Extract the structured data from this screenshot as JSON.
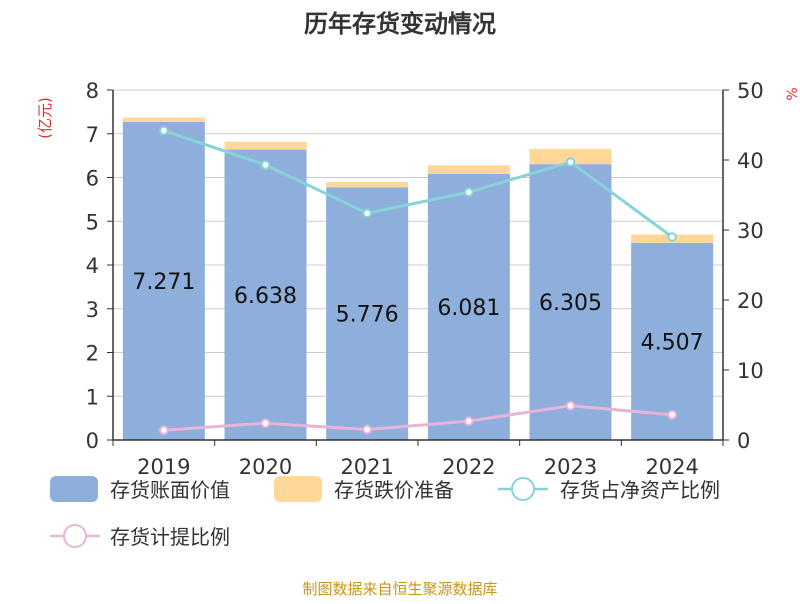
{
  "chart_data": {
    "type": "bar",
    "title": "历年存货变动情况",
    "categories": [
      "2019",
      "2020",
      "2021",
      "2022",
      "2023",
      "2024"
    ],
    "stacked": true,
    "y_left": {
      "unit_label": "(亿元)",
      "ylim": [
        0,
        8
      ],
      "ticks": [
        0,
        1,
        2,
        3,
        4,
        5,
        6,
        7,
        8
      ]
    },
    "y_right": {
      "unit_label": "%",
      "ylim": [
        0,
        50
      ],
      "ticks": [
        0,
        10,
        20,
        30,
        40,
        50
      ]
    },
    "series": [
      {
        "name": "存货账面价值",
        "kind": "bar",
        "axis": "left",
        "color": "#8eaedb",
        "values": [
          7.271,
          6.638,
          5.776,
          6.081,
          6.305,
          4.507
        ],
        "data_labels": [
          "7.271",
          "6.638",
          "5.776",
          "6.081",
          "6.305",
          "4.507"
        ]
      },
      {
        "name": "存货跌价准备",
        "kind": "bar",
        "axis": "left",
        "color": "#ffd899",
        "values": [
          0.1,
          0.18,
          0.12,
          0.2,
          0.35,
          0.19
        ]
      },
      {
        "name": "存货占净资产比例",
        "kind": "line",
        "axis": "right",
        "color": "#86d4d8",
        "values": [
          44.2,
          39.3,
          32.4,
          35.4,
          39.7,
          29.0
        ]
      },
      {
        "name": "存货计提比例",
        "kind": "line",
        "axis": "right",
        "color": "#e8b5d8",
        "values": [
          1.4,
          2.4,
          1.5,
          2.7,
          4.9,
          3.6
        ]
      }
    ],
    "grid": true,
    "legend_position": "bottom"
  },
  "footer": {
    "source": "制图数据来自恒生聚源数据库"
  },
  "colors": {
    "title": "#333333",
    "axis": "#333333",
    "grid": "#cccccc",
    "unit_label": "#e03030",
    "source": "#c8961e"
  }
}
